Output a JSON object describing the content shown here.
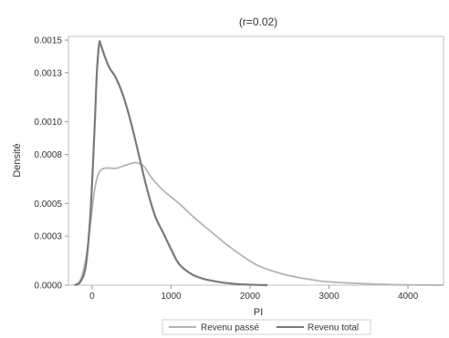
{
  "chart_data": {
    "type": "line",
    "title": "(r=0.02)",
    "xlabel": "PI",
    "ylabel": "Densité",
    "xlim": [
      -300,
      4450
    ],
    "ylim": [
      0,
      0.0015
    ],
    "x_ticks": [
      {
        "value": 0,
        "label": "0"
      },
      {
        "value": 1000,
        "label": "1000"
      },
      {
        "value": 2000,
        "label": "2000"
      },
      {
        "value": 3000,
        "label": "3000"
      },
      {
        "value": 4000,
        "label": "4000"
      }
    ],
    "y_ticks": [
      {
        "value": 0,
        "label": "0.0000"
      },
      {
        "value": 0.0003,
        "label": "0.0003"
      },
      {
        "value": 0.0005,
        "label": "0.0005"
      },
      {
        "value": 0.0008,
        "label": "0.0008"
      },
      {
        "value": 0.001,
        "label": "0.0010"
      },
      {
        "value": 0.0013,
        "label": "0.0013"
      },
      {
        "value": 0.0015,
        "label": "0.0015"
      }
    ],
    "grid": false,
    "legend_position": "bottom",
    "series": [
      {
        "name": "Revenu passé",
        "color": "#b4b4b4",
        "points": [
          [
            -230,
            0.0
          ],
          [
            -150,
            3e-05
          ],
          [
            -80,
            0.00016
          ],
          [
            -20,
            0.00038
          ],
          [
            30,
            0.00058
          ],
          [
            80,
            0.00068
          ],
          [
            150,
            0.000715
          ],
          [
            300,
            0.000715
          ],
          [
            400,
            0.00073
          ],
          [
            500,
            0.000745
          ],
          [
            560,
            0.00075
          ],
          [
            650,
            0.00073
          ],
          [
            750,
            0.00066
          ],
          [
            900,
            0.00058
          ],
          [
            1100,
            0.0005
          ],
          [
            1300,
            0.00041
          ],
          [
            1500,
            0.00033
          ],
          [
            1700,
            0.00025
          ],
          [
            1900,
            0.00018
          ],
          [
            2100,
            0.00012
          ],
          [
            2400,
            7e-05
          ],
          [
            2700,
            4e-05
          ],
          [
            3000,
            2e-05
          ],
          [
            3400,
            1e-05
          ],
          [
            3800,
            3e-06
          ],
          [
            4200,
            1e-06
          ],
          [
            4450,
            0.0
          ]
        ]
      },
      {
        "name": "Revenu total",
        "color": "#7a7a7a",
        "points": [
          [
            -220,
            0.0
          ],
          [
            -150,
            2e-05
          ],
          [
            -80,
            0.00012
          ],
          [
            -20,
            0.00045
          ],
          [
            30,
            0.00095
          ],
          [
            60,
            0.0013
          ],
          [
            90,
            0.00148
          ],
          [
            110,
            0.00147
          ],
          [
            160,
            0.0014
          ],
          [
            220,
            0.00133
          ],
          [
            300,
            0.00127
          ],
          [
            400,
            0.00115
          ],
          [
            500,
            0.00098
          ],
          [
            600,
            0.00078
          ],
          [
            700,
            0.00058
          ],
          [
            800,
            0.00042
          ],
          [
            900,
            0.00032
          ],
          [
            1000,
            0.00022
          ],
          [
            1100,
            0.00013
          ],
          [
            1250,
            7e-05
          ],
          [
            1400,
            4e-05
          ],
          [
            1600,
            2e-05
          ],
          [
            1800,
            8e-06
          ],
          [
            2000,
            3e-06
          ],
          [
            2220,
            0.0
          ]
        ]
      }
    ]
  }
}
